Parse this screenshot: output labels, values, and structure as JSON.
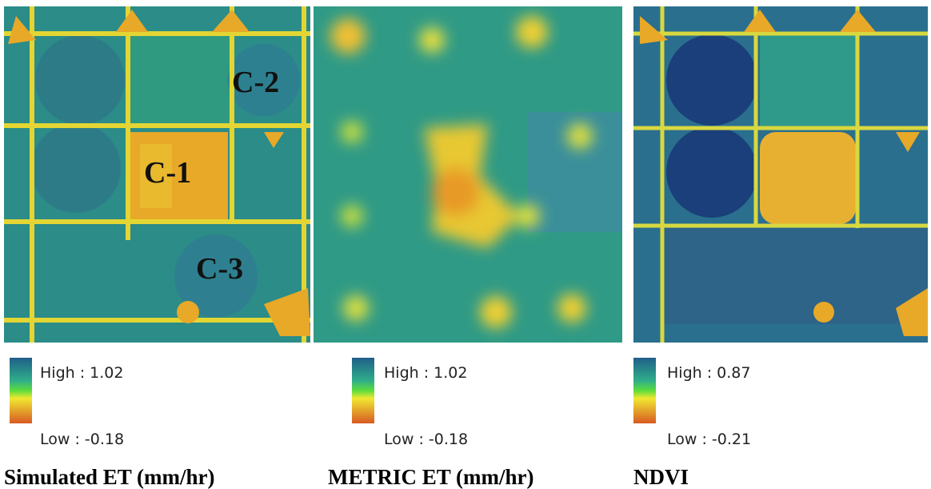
{
  "panels": [
    {
      "title": "Simulated ET (mm/hr)",
      "legend": {
        "high": "High : 1.02",
        "low": "Low : -0.18"
      },
      "labels": [
        "C-2",
        "C-1",
        "C-3"
      ]
    },
    {
      "title": "METRIC ET (mm/hr)",
      "legend": {
        "high": "High : 1.02",
        "low": "Low : -0.18"
      }
    },
    {
      "title": "NDVI",
      "legend": {
        "high": "High : 0.87",
        "low": "Low : -0.21"
      }
    }
  ]
}
